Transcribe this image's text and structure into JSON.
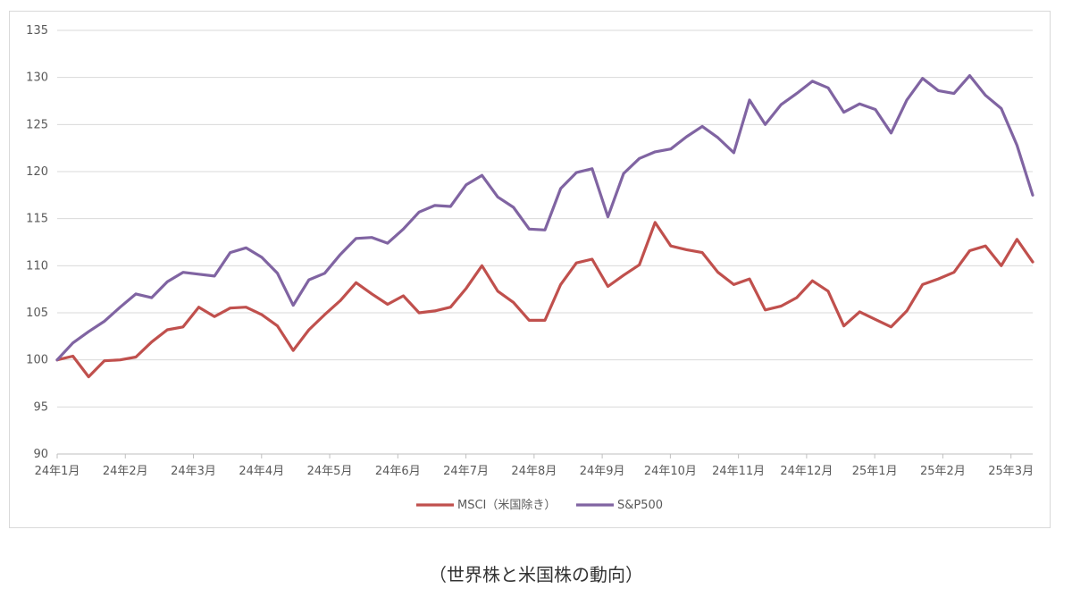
{
  "caption": "（世界株と米国株の動向）",
  "chart_data": {
    "type": "line",
    "title": "",
    "xlabel": "",
    "ylabel": "",
    "ylim": [
      90,
      135
    ],
    "yticks": [
      90,
      95,
      100,
      105,
      110,
      115,
      120,
      125,
      130,
      135
    ],
    "grid": "horizontal",
    "legend": "bottom",
    "x_tick_labels": [
      "24年1月",
      "24年2月",
      "24年3月",
      "24年4月",
      "24年5月",
      "24年6月",
      "24年7月",
      "24年8月",
      "24年9月",
      "24年10月",
      "24年11月",
      "24年12月",
      "25年1月",
      "25年2月",
      "25年3月"
    ],
    "points_per_month": 4.33,
    "series": [
      {
        "name": "MSCI（米国除き）",
        "color": "#c0504d",
        "values": [
          100.0,
          100.4,
          98.2,
          99.9,
          100.0,
          100.3,
          101.9,
          103.2,
          103.5,
          105.6,
          104.6,
          105.5,
          105.6,
          104.8,
          103.6,
          101.0,
          103.2,
          104.8,
          106.3,
          108.2,
          107.0,
          105.9,
          106.8,
          105.0,
          105.2,
          105.6,
          107.6,
          110.0,
          107.3,
          106.1,
          104.2,
          104.2,
          108.0,
          110.3,
          110.7,
          107.8,
          109.0,
          110.1,
          114.6,
          112.1,
          111.7,
          111.4,
          109.3,
          108.0,
          108.6,
          105.3,
          105.7,
          106.6,
          108.4,
          107.3,
          103.6,
          105.1,
          104.3,
          103.5,
          105.2,
          108.0,
          108.6,
          109.3,
          111.6,
          112.1,
          110.0,
          112.8,
          110.4
        ]
      },
      {
        "name": "S&P500",
        "color": "#8064a2",
        "values": [
          100.0,
          101.8,
          103.0,
          104.1,
          105.6,
          107.0,
          106.6,
          108.3,
          109.3,
          109.1,
          108.9,
          111.4,
          111.9,
          110.9,
          109.2,
          105.8,
          108.5,
          109.2,
          111.2,
          112.9,
          113.0,
          112.4,
          113.9,
          115.7,
          116.4,
          116.3,
          118.6,
          119.6,
          117.3,
          116.2,
          113.9,
          113.8,
          118.2,
          119.9,
          120.3,
          115.2,
          119.8,
          121.4,
          122.1,
          122.4,
          123.7,
          124.8,
          123.6,
          122.0,
          127.6,
          125.0,
          127.1,
          128.3,
          129.6,
          128.9,
          126.3,
          127.2,
          126.6,
          124.1,
          127.6,
          129.9,
          128.6,
          128.3,
          130.2,
          128.1,
          126.7,
          122.8,
          117.5
        ]
      }
    ]
  }
}
